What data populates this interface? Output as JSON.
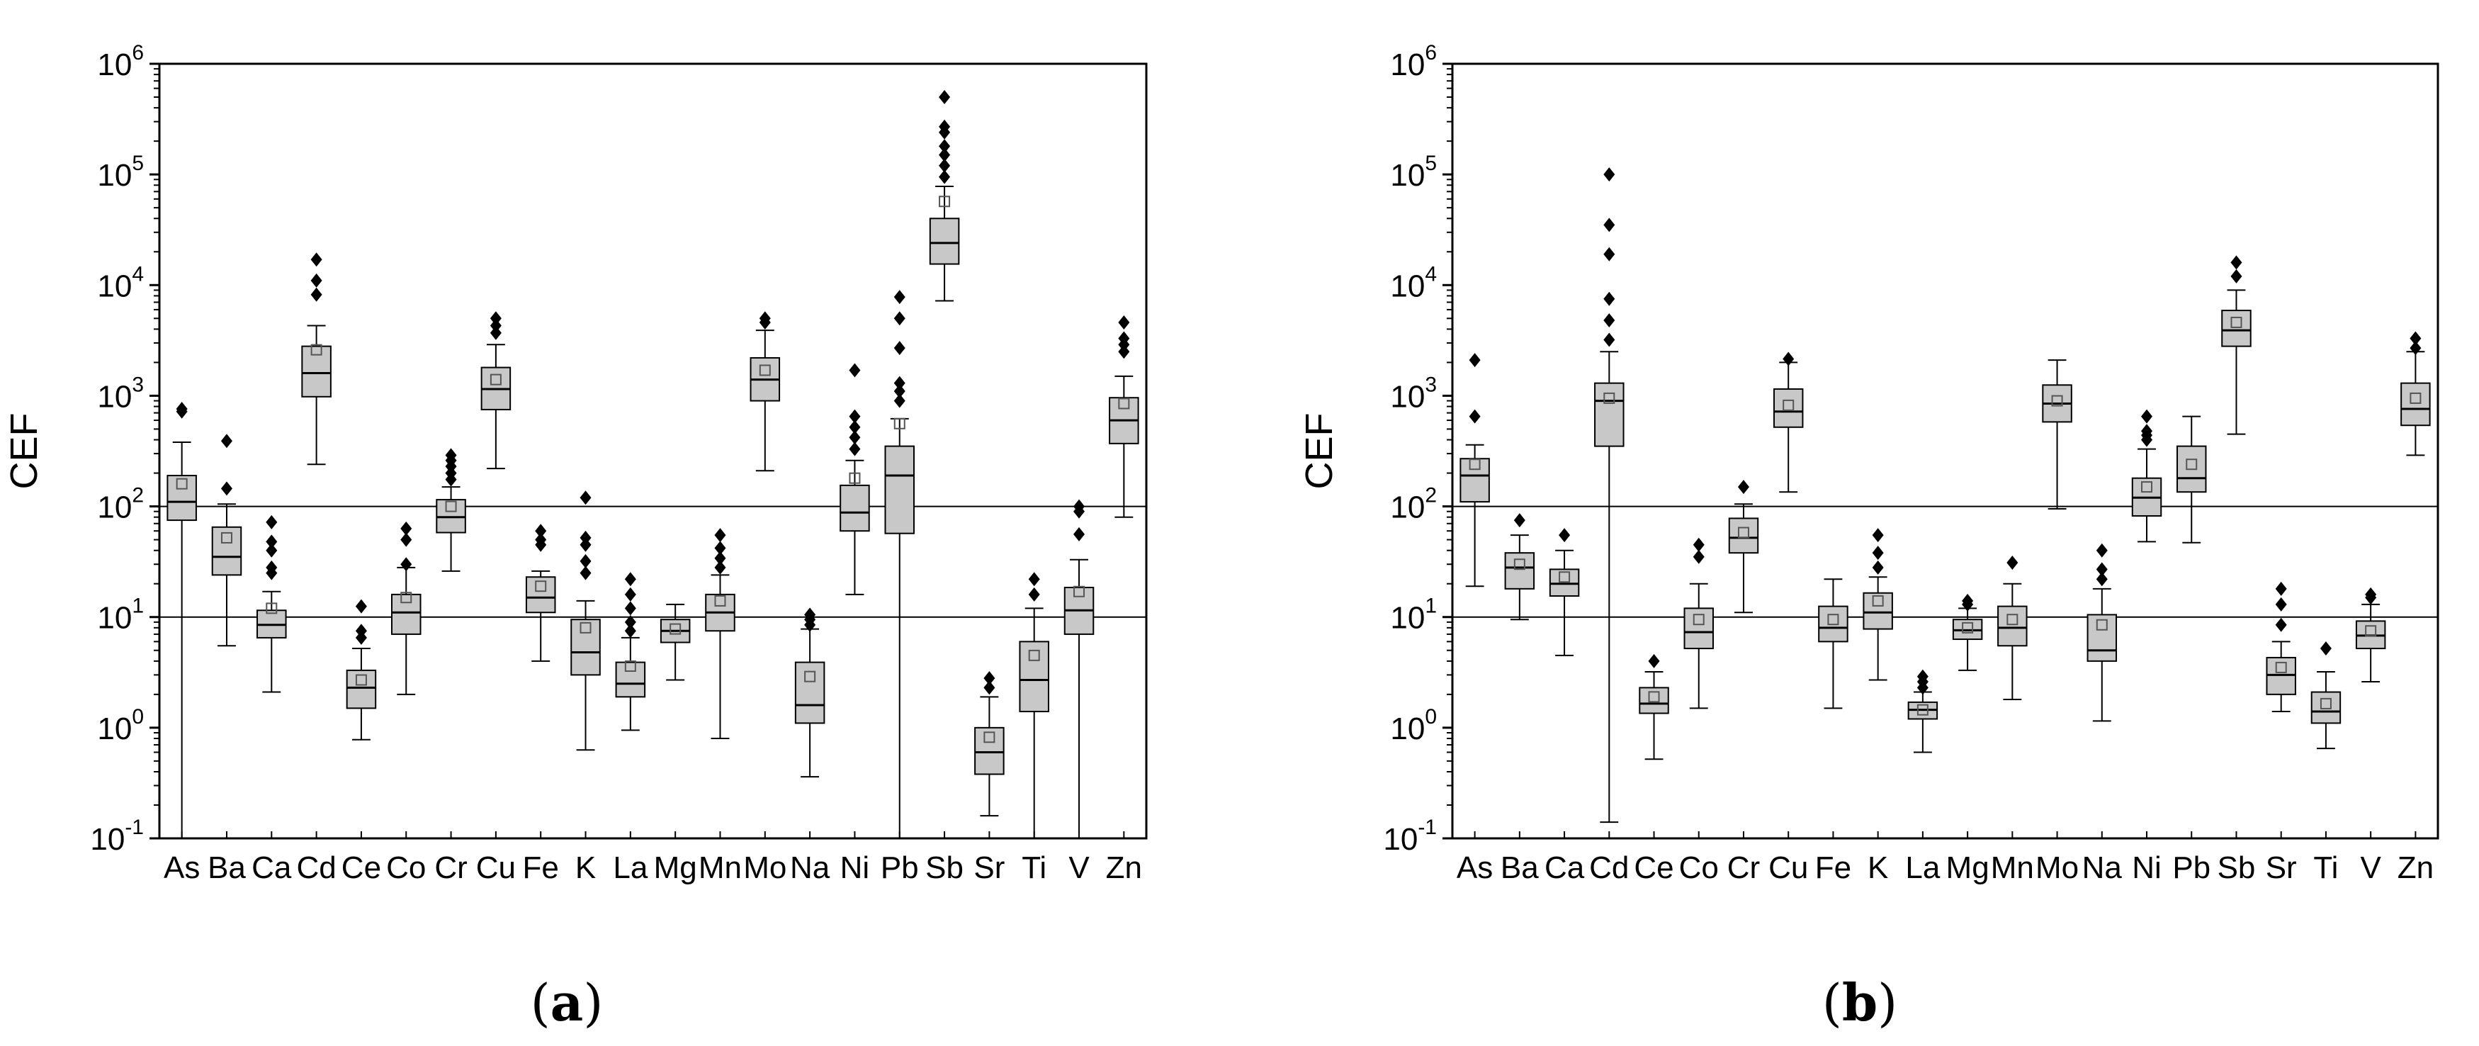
{
  "chart_data": [
    {
      "type": "box",
      "panel_label": "a",
      "ylabel": "CEF",
      "yscale": "log",
      "ylim": [
        0.1,
        1000000
      ],
      "ytick_labels": [
        {
          "base": "10",
          "exp": "-1"
        },
        {
          "base": "10",
          "exp": "0"
        },
        {
          "base": "10",
          "exp": "1"
        },
        {
          "base": "10",
          "exp": "2"
        },
        {
          "base": "10",
          "exp": "3"
        },
        {
          "base": "10",
          "exp": "4"
        },
        {
          "base": "10",
          "exp": "5"
        },
        {
          "base": "10",
          "exp": "6"
        }
      ],
      "reference_lines": [
        10,
        100
      ],
      "categories": [
        "As",
        "Ba",
        "Ca",
        "Cd",
        "Ce",
        "Co",
        "Cr",
        "Cu",
        "Fe",
        "K",
        "La",
        "Mg",
        "Mn",
        "Mo",
        "Na",
        "Ni",
        "Pb",
        "Sb",
        "Sr",
        "Ti",
        "V",
        "Zn"
      ],
      "boxes": [
        {
          "whisker_low": 0.1,
          "q1": 75,
          "median": 110,
          "q3": 190,
          "whisker_high": 380,
          "mean": 160,
          "outliers": [
            720,
            760
          ]
        },
        {
          "whisker_low": 5.5,
          "q1": 24,
          "median": 35,
          "q3": 65,
          "whisker_high": 105,
          "mean": 52,
          "outliers": [
            145,
            390
          ]
        },
        {
          "whisker_low": 2.1,
          "q1": 6.5,
          "median": 8.5,
          "q3": 11.5,
          "whisker_high": 17,
          "mean": 12,
          "outliers": [
            25,
            28,
            40,
            48,
            72
          ]
        },
        {
          "whisker_low": 240,
          "q1": 980,
          "median": 1600,
          "q3": 2800,
          "whisker_high": 4300,
          "mean": 2600,
          "outliers": [
            8200,
            11000,
            17000
          ]
        },
        {
          "whisker_low": 0.78,
          "q1": 1.5,
          "median": 2.3,
          "q3": 3.3,
          "whisker_high": 5.2,
          "mean": 2.7,
          "outliers": [
            6.5,
            7.5,
            12.5
          ]
        },
        {
          "whisker_low": 2,
          "q1": 7,
          "median": 11,
          "q3": 16,
          "whisker_high": 28,
          "mean": 15,
          "outliers": [
            30,
            50,
            63
          ]
        },
        {
          "whisker_low": 26,
          "q1": 58,
          "median": 80,
          "q3": 115,
          "whisker_high": 150,
          "mean": 100,
          "outliers": [
            175,
            200,
            230,
            260,
            290
          ]
        },
        {
          "whisker_low": 220,
          "q1": 750,
          "median": 1150,
          "q3": 1800,
          "whisker_high": 2900,
          "mean": 1400,
          "outliers": [
            3700,
            4300,
            5000
          ]
        },
        {
          "whisker_low": 4,
          "q1": 11,
          "median": 15,
          "q3": 23,
          "whisker_high": 26,
          "mean": 19,
          "outliers": [
            45,
            50,
            60
          ]
        },
        {
          "whisker_low": 0.63,
          "q1": 3,
          "median": 4.8,
          "q3": 9.5,
          "whisker_high": 14,
          "mean": 8,
          "outliers": [
            25,
            32,
            45,
            52,
            120
          ]
        },
        {
          "whisker_low": 0.95,
          "q1": 1.9,
          "median": 2.5,
          "q3": 3.9,
          "whisker_high": 6.5,
          "mean": 3.6,
          "outliers": [
            7.5,
            9,
            12,
            16,
            22
          ]
        },
        {
          "whisker_low": 2.7,
          "q1": 5.9,
          "median": 7.5,
          "q3": 9.5,
          "whisker_high": 13,
          "mean": 7.8,
          "outliers": []
        },
        {
          "whisker_low": 0.8,
          "q1": 7.5,
          "median": 11,
          "q3": 16,
          "whisker_high": 24,
          "mean": 14,
          "outliers": [
            28,
            34,
            42,
            55
          ]
        },
        {
          "whisker_low": 210,
          "q1": 900,
          "median": 1400,
          "q3": 2200,
          "whisker_high": 3900,
          "mean": 1700,
          "outliers": [
            4600,
            5000
          ]
        },
        {
          "whisker_low": 0.36,
          "q1": 1.1,
          "median": 1.6,
          "q3": 3.9,
          "whisker_high": 7.8,
          "mean": 2.9,
          "outliers": [
            8.5,
            9.5,
            10.5
          ]
        },
        {
          "whisker_low": 16,
          "q1": 60,
          "median": 88,
          "q3": 155,
          "whisker_high": 260,
          "mean": 180,
          "outliers": [
            330,
            420,
            520,
            650,
            1700
          ]
        },
        {
          "whisker_low": 0.1,
          "q1": 57,
          "median": 190,
          "q3": 350,
          "whisker_high": 620,
          "mean": 560,
          "outliers": [
            900,
            1100,
            1300,
            2700,
            5000,
            7800
          ]
        },
        {
          "whisker_low": 7200,
          "q1": 15500,
          "median": 24000,
          "q3": 40000,
          "whisker_high": 78000,
          "mean": 57000,
          "outliers": [
            95000,
            120000,
            150000,
            180000,
            240000,
            270000,
            500000
          ]
        },
        {
          "whisker_low": 0.16,
          "q1": 0.38,
          "median": 0.6,
          "q3": 1.0,
          "whisker_high": 1.9,
          "mean": 0.82,
          "outliers": [
            2.3,
            2.8
          ]
        },
        {
          "whisker_low": 0.1,
          "q1": 1.4,
          "median": 2.7,
          "q3": 6,
          "whisker_high": 12,
          "mean": 4.5,
          "outliers": [
            16,
            22
          ]
        },
        {
          "whisker_low": 0.1,
          "q1": 7,
          "median": 11.5,
          "q3": 18.5,
          "whisker_high": 33,
          "mean": 17,
          "outliers": [
            56,
            90,
            100
          ]
        },
        {
          "whisker_low": 80,
          "q1": 370,
          "median": 600,
          "q3": 960,
          "whisker_high": 1500,
          "mean": 850,
          "outliers": [
            2500,
            2900,
            3300,
            4600
          ]
        }
      ]
    },
    {
      "type": "box",
      "panel_label": "b",
      "ylabel": "CEF",
      "yscale": "log",
      "ylim": [
        0.1,
        1000000
      ],
      "ytick_labels": [
        {
          "base": "10",
          "exp": "-1"
        },
        {
          "base": "10",
          "exp": "0"
        },
        {
          "base": "10",
          "exp": "1"
        },
        {
          "base": "10",
          "exp": "2"
        },
        {
          "base": "10",
          "exp": "3"
        },
        {
          "base": "10",
          "exp": "4"
        },
        {
          "base": "10",
          "exp": "5"
        },
        {
          "base": "10",
          "exp": "6"
        }
      ],
      "reference_lines": [
        10,
        100
      ],
      "categories": [
        "As",
        "Ba",
        "Ca",
        "Cd",
        "Ce",
        "Co",
        "Cr",
        "Cu",
        "Fe",
        "K",
        "La",
        "Mg",
        "Mn",
        "Mo",
        "Na",
        "Ni",
        "Pb",
        "Sb",
        "Sr",
        "Ti",
        "V",
        "Zn"
      ],
      "boxes": [
        {
          "whisker_low": 19,
          "q1": 110,
          "median": 190,
          "q3": 270,
          "whisker_high": 360,
          "mean": 240,
          "outliers": [
            650,
            2100
          ]
        },
        {
          "whisker_low": 9.5,
          "q1": 18,
          "median": 28,
          "q3": 38,
          "whisker_high": 55,
          "mean": 30,
          "outliers": [
            75
          ]
        },
        {
          "whisker_low": 4.5,
          "q1": 15.5,
          "median": 20,
          "q3": 27,
          "whisker_high": 40,
          "mean": 23,
          "outliers": [
            55
          ]
        },
        {
          "whisker_low": 0.14,
          "q1": 350,
          "median": 900,
          "q3": 1300,
          "whisker_high": 2500,
          "mean": 950,
          "outliers": [
            3200,
            4800,
            7500,
            19000,
            35000,
            100000
          ]
        },
        {
          "whisker_low": 0.52,
          "q1": 1.35,
          "median": 1.65,
          "q3": 2.3,
          "whisker_high": 3.2,
          "mean": 1.9,
          "outliers": [
            4
          ]
        },
        {
          "whisker_low": 1.5,
          "q1": 5.2,
          "median": 7.3,
          "q3": 12,
          "whisker_high": 20,
          "mean": 9.5,
          "outliers": [
            35,
            45
          ]
        },
        {
          "whisker_low": 11,
          "q1": 38,
          "median": 52,
          "q3": 78,
          "whisker_high": 105,
          "mean": 58,
          "outliers": [
            150
          ]
        },
        {
          "whisker_low": 135,
          "q1": 520,
          "median": 720,
          "q3": 1150,
          "whisker_high": 2000,
          "mean": 820,
          "outliers": [
            2150
          ]
        },
        {
          "whisker_low": 1.5,
          "q1": 6,
          "median": 8,
          "q3": 12.5,
          "whisker_high": 22,
          "mean": 9.5,
          "outliers": []
        },
        {
          "whisker_low": 2.7,
          "q1": 7.8,
          "median": 11,
          "q3": 16.5,
          "whisker_high": 23,
          "mean": 14,
          "outliers": [
            28,
            38,
            55
          ]
        },
        {
          "whisker_low": 0.6,
          "q1": 1.2,
          "median": 1.45,
          "q3": 1.7,
          "whisker_high": 2.1,
          "mean": 1.45,
          "outliers": [
            2.3,
            2.6,
            2.9
          ]
        },
        {
          "whisker_low": 3.3,
          "q1": 6.3,
          "median": 7.6,
          "q3": 9.5,
          "whisker_high": 12,
          "mean": 8,
          "outliers": [
            13,
            14
          ]
        },
        {
          "whisker_low": 1.8,
          "q1": 5.5,
          "median": 8,
          "q3": 12.5,
          "whisker_high": 20,
          "mean": 9.5,
          "outliers": [
            31
          ]
        },
        {
          "whisker_low": 95,
          "q1": 580,
          "median": 850,
          "q3": 1250,
          "whisker_high": 2100,
          "mean": 900,
          "outliers": []
        },
        {
          "whisker_low": 1.15,
          "q1": 4,
          "median": 5,
          "q3": 10.5,
          "whisker_high": 18,
          "mean": 8.5,
          "outliers": [
            22,
            27,
            40
          ]
        },
        {
          "whisker_low": 48,
          "q1": 82,
          "median": 120,
          "q3": 180,
          "whisker_high": 330,
          "mean": 150,
          "outliers": [
            400,
            440,
            480,
            650
          ]
        },
        {
          "whisker_low": 47,
          "q1": 135,
          "median": 180,
          "q3": 350,
          "whisker_high": 650,
          "mean": 240,
          "outliers": []
        },
        {
          "whisker_low": 450,
          "q1": 2800,
          "median": 3900,
          "q3": 5900,
          "whisker_high": 9000,
          "mean": 4600,
          "outliers": [
            12000,
            16000
          ]
        },
        {
          "whisker_low": 1.4,
          "q1": 2,
          "median": 3,
          "q3": 4.3,
          "whisker_high": 6,
          "mean": 3.5,
          "outliers": [
            8.5,
            13,
            18
          ]
        },
        {
          "whisker_low": 0.65,
          "q1": 1.1,
          "median": 1.4,
          "q3": 2.1,
          "whisker_high": 3.2,
          "mean": 1.65,
          "outliers": [
            5.2
          ]
        },
        {
          "whisker_low": 2.6,
          "q1": 5.2,
          "median": 6.8,
          "q3": 9.2,
          "whisker_high": 13,
          "mean": 7.5,
          "outliers": [
            15,
            16
          ]
        },
        {
          "whisker_low": 290,
          "q1": 540,
          "median": 760,
          "q3": 1300,
          "whisker_high": 2500,
          "mean": 950,
          "outliers": [
            2700,
            3300
          ]
        }
      ]
    }
  ]
}
